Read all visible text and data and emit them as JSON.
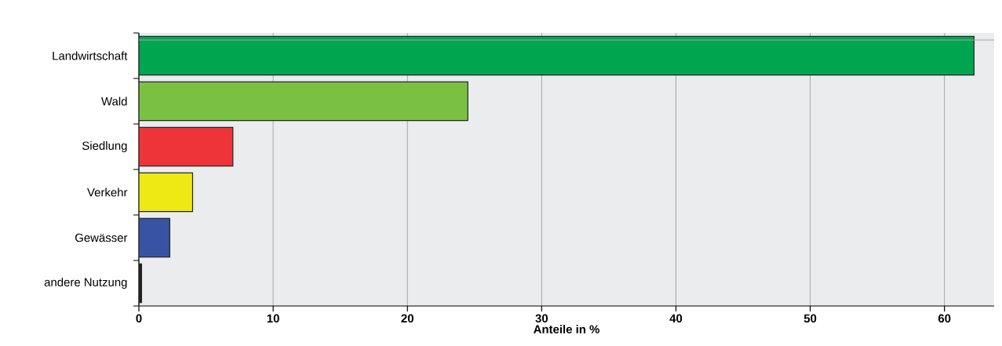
{
  "chart_data": {
    "type": "bar",
    "orientation": "horizontal",
    "categories": [
      "Landwirtschaft",
      "Wald",
      "Siedlung",
      "Verkehr",
      "Gewässer",
      "andere Nutzung"
    ],
    "values": [
      62.2,
      24.5,
      7.0,
      4.0,
      2.3,
      0.2
    ],
    "colors": [
      "#00a550",
      "#7ac143",
      "#ef3439",
      "#eee814",
      "#3953a4",
      "#231f20"
    ],
    "xlim": [
      0,
      63.7
    ],
    "xticks": [
      0,
      10,
      20,
      30,
      40,
      50,
      60
    ],
    "xlabel": "Anteile in %",
    "grid": "x"
  }
}
